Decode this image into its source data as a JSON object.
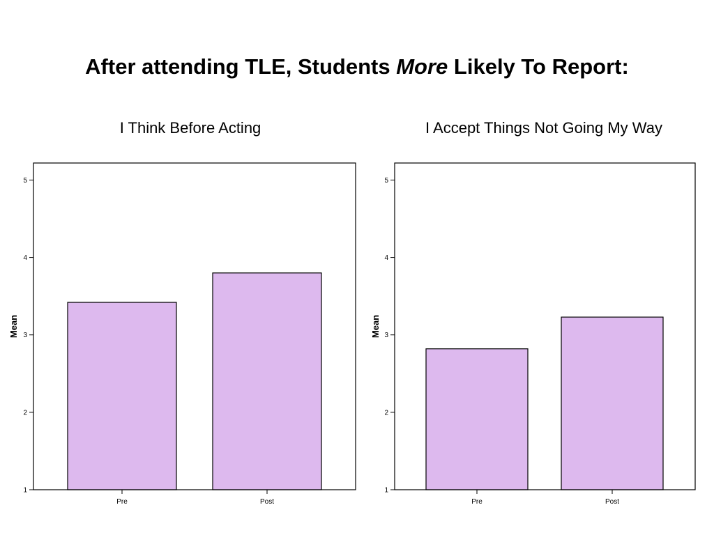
{
  "slide": {
    "title_before": "After attending TLE, Students ",
    "title_emphasis": "More",
    "title_after": " Likely To Report:"
  },
  "colors": {
    "bar_fill": "#ddb9ee",
    "bar_stroke": "#000000",
    "frame": "#000000"
  },
  "chart_data": [
    {
      "type": "bar",
      "title": "I Think Before Acting",
      "categories": [
        "Pre",
        "Post"
      ],
      "values": [
        3.42,
        3.8
      ],
      "ylabel": "Mean",
      "xlabel": "",
      "ylim": [
        1,
        5.22
      ],
      "yticks": [
        1,
        2,
        3,
        4,
        5
      ],
      "grid": false
    },
    {
      "type": "bar",
      "title": "I Accept Things Not Going My Way",
      "categories": [
        "Pre",
        "Post"
      ],
      "values": [
        2.82,
        3.23
      ],
      "ylabel": "Mean",
      "xlabel": "",
      "ylim": [
        1,
        5.22
      ],
      "yticks": [
        1,
        2,
        3,
        4,
        5
      ],
      "grid": false
    }
  ]
}
